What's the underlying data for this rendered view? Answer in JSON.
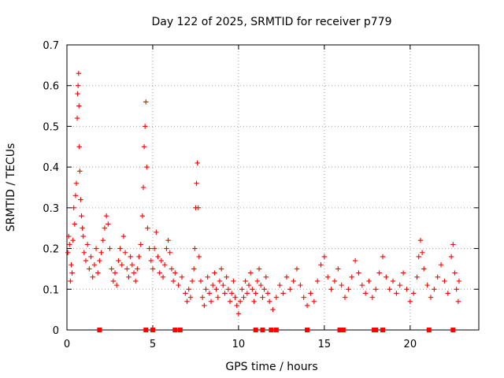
{
  "chart_data": {
    "type": "scatter",
    "title": "Day 122 of 2025, SRMTID for receiver p779",
    "xlabel": "GPS time / hours",
    "ylabel": "SRMTID / TECUs",
    "xlim": [
      0,
      24
    ],
    "ylim": [
      0,
      0.7
    ],
    "xticks": [
      0,
      5,
      10,
      15,
      20
    ],
    "xtick_labels": [
      "0",
      "5",
      "10",
      "15",
      "20"
    ],
    "yticks": [
      0,
      0.1,
      0.2,
      0.3,
      0.4,
      0.5,
      0.6,
      0.7
    ],
    "ytick_labels": [
      "0",
      "0.1",
      "0.2",
      "0.3",
      "0.4",
      "0.5",
      "0.6",
      "0.7"
    ],
    "grid": true,
    "marker": "+",
    "color": "#ff0000",
    "series": [
      {
        "name": "SRMTID",
        "points": [
          [
            0.05,
            0.19
          ],
          [
            0.1,
            0.23
          ],
          [
            0.15,
            0.21
          ],
          [
            0.2,
            0.12
          ],
          [
            0.25,
            0.16
          ],
          [
            0.3,
            0.14
          ],
          [
            0.35,
            0.22
          ],
          [
            0.4,
            0.3
          ],
          [
            0.45,
            0.26
          ],
          [
            0.5,
            0.33
          ],
          [
            0.55,
            0.36
          ],
          [
            0.6,
            0.52
          ],
          [
            0.62,
            0.58
          ],
          [
            0.65,
            0.6
          ],
          [
            0.68,
            0.63
          ],
          [
            0.7,
            0.55
          ],
          [
            0.72,
            0.45
          ],
          [
            0.75,
            0.39
          ],
          [
            0.8,
            0.32
          ],
          [
            0.85,
            0.28
          ],
          [
            0.9,
            0.25
          ],
          [
            0.95,
            0.23
          ],
          [
            1.0,
            0.19
          ],
          [
            1.1,
            0.17
          ],
          [
            1.2,
            0.21
          ],
          [
            1.3,
            0.15
          ],
          [
            1.4,
            0.18
          ],
          [
            1.5,
            0.13
          ],
          [
            1.6,
            0.16
          ],
          [
            1.7,
            0.2
          ],
          [
            1.8,
            0.14
          ],
          [
            1.9,
            0.17
          ],
          [
            2.0,
            0.19
          ],
          [
            2.1,
            0.22
          ],
          [
            2.2,
            0.25
          ],
          [
            2.3,
            0.28
          ],
          [
            2.4,
            0.26
          ],
          [
            2.5,
            0.2
          ],
          [
            2.6,
            0.15
          ],
          [
            2.7,
            0.12
          ],
          [
            2.8,
            0.14
          ],
          [
            2.9,
            0.11
          ],
          [
            3.0,
            0.17
          ],
          [
            3.1,
            0.2
          ],
          [
            3.2,
            0.16
          ],
          [
            3.3,
            0.23
          ],
          [
            3.4,
            0.19
          ],
          [
            3.5,
            0.15
          ],
          [
            3.6,
            0.13
          ],
          [
            3.7,
            0.18
          ],
          [
            3.8,
            0.16
          ],
          [
            3.9,
            0.14
          ],
          [
            4.0,
            0.12
          ],
          [
            4.1,
            0.15
          ],
          [
            4.2,
            0.18
          ],
          [
            4.3,
            0.21
          ],
          [
            4.4,
            0.28
          ],
          [
            4.45,
            0.35
          ],
          [
            4.5,
            0.45
          ],
          [
            4.55,
            0.5
          ],
          [
            4.6,
            0.56
          ],
          [
            4.65,
            0.4
          ],
          [
            4.7,
            0.25
          ],
          [
            4.8,
            0.2
          ],
          [
            4.9,
            0.17
          ],
          [
            5.0,
            0.15
          ],
          [
            5.1,
            0.2
          ],
          [
            5.2,
            0.24
          ],
          [
            5.3,
            0.18
          ],
          [
            5.4,
            0.14
          ],
          [
            5.5,
            0.17
          ],
          [
            5.6,
            0.13
          ],
          [
            5.7,
            0.16
          ],
          [
            5.8,
            0.2
          ],
          [
            5.9,
            0.22
          ],
          [
            6.0,
            0.19
          ],
          [
            6.1,
            0.15
          ],
          [
            6.2,
            0.12
          ],
          [
            6.3,
            0.14
          ],
          [
            6.5,
            0.11
          ],
          [
            6.7,
            0.13
          ],
          [
            6.9,
            0.09
          ],
          [
            7.0,
            0.07
          ],
          [
            7.1,
            0.1
          ],
          [
            7.2,
            0.08
          ],
          [
            7.3,
            0.12
          ],
          [
            7.4,
            0.15
          ],
          [
            7.45,
            0.2
          ],
          [
            7.5,
            0.3
          ],
          [
            7.55,
            0.36
          ],
          [
            7.6,
            0.41
          ],
          [
            7.65,
            0.3
          ],
          [
            7.7,
            0.18
          ],
          [
            7.8,
            0.12
          ],
          [
            7.9,
            0.08
          ],
          [
            8.0,
            0.06
          ],
          [
            8.1,
            0.1
          ],
          [
            8.2,
            0.13
          ],
          [
            8.3,
            0.09
          ],
          [
            8.4,
            0.07
          ],
          [
            8.5,
            0.11
          ],
          [
            8.6,
            0.14
          ],
          [
            8.7,
            0.1
          ],
          [
            8.8,
            0.08
          ],
          [
            8.9,
            0.12
          ],
          [
            9.0,
            0.15
          ],
          [
            9.1,
            0.11
          ],
          [
            9.2,
            0.09
          ],
          [
            9.3,
            0.13
          ],
          [
            9.4,
            0.1
          ],
          [
            9.5,
            0.07
          ],
          [
            9.6,
            0.09
          ],
          [
            9.7,
            0.12
          ],
          [
            9.8,
            0.08
          ],
          [
            9.9,
            0.06
          ],
          [
            10.0,
            0.04
          ],
          [
            10.1,
            0.07
          ],
          [
            10.2,
            0.1
          ],
          [
            10.3,
            0.08
          ],
          [
            10.4,
            0.12
          ],
          [
            10.5,
            0.09
          ],
          [
            10.6,
            0.11
          ],
          [
            10.7,
            0.14
          ],
          [
            10.8,
            0.1
          ],
          [
            10.9,
            0.07
          ],
          [
            11.0,
            0.09
          ],
          [
            11.1,
            0.12
          ],
          [
            11.2,
            0.15
          ],
          [
            11.3,
            0.11
          ],
          [
            11.4,
            0.08
          ],
          [
            11.5,
            0.1
          ],
          [
            11.6,
            0.13
          ],
          [
            11.7,
            0.09
          ],
          [
            11.8,
            0.07
          ],
          [
            12.0,
            0.05
          ],
          [
            12.2,
            0.08
          ],
          [
            12.4,
            0.11
          ],
          [
            12.6,
            0.09
          ],
          [
            12.8,
            0.13
          ],
          [
            13.0,
            0.1
          ],
          [
            13.2,
            0.12
          ],
          [
            13.4,
            0.15
          ],
          [
            13.6,
            0.11
          ],
          [
            13.8,
            0.08
          ],
          [
            14.0,
            0.06
          ],
          [
            14.2,
            0.09
          ],
          [
            14.4,
            0.07
          ],
          [
            14.6,
            0.12
          ],
          [
            14.8,
            0.16
          ],
          [
            15.0,
            0.18
          ],
          [
            15.2,
            0.13
          ],
          [
            15.4,
            0.1
          ],
          [
            15.6,
            0.12
          ],
          [
            15.8,
            0.15
          ],
          [
            16.0,
            0.11
          ],
          [
            16.2,
            0.08
          ],
          [
            16.4,
            0.1
          ],
          [
            16.6,
            0.13
          ],
          [
            16.8,
            0.17
          ],
          [
            17.0,
            0.14
          ],
          [
            17.2,
            0.11
          ],
          [
            17.4,
            0.09
          ],
          [
            17.6,
            0.12
          ],
          [
            17.8,
            0.08
          ],
          [
            18.0,
            0.1
          ],
          [
            18.2,
            0.14
          ],
          [
            18.4,
            0.18
          ],
          [
            18.6,
            0.13
          ],
          [
            18.8,
            0.1
          ],
          [
            19.0,
            0.12
          ],
          [
            19.2,
            0.09
          ],
          [
            19.4,
            0.11
          ],
          [
            19.6,
            0.14
          ],
          [
            19.8,
            0.1
          ],
          [
            20.0,
            0.07
          ],
          [
            20.2,
            0.09
          ],
          [
            20.4,
            0.13
          ],
          [
            20.5,
            0.18
          ],
          [
            20.6,
            0.22
          ],
          [
            20.7,
            0.19
          ],
          [
            20.8,
            0.15
          ],
          [
            21.0,
            0.11
          ],
          [
            21.2,
            0.08
          ],
          [
            21.4,
            0.1
          ],
          [
            21.6,
            0.13
          ],
          [
            21.8,
            0.16
          ],
          [
            22.0,
            0.12
          ],
          [
            22.2,
            0.09
          ],
          [
            22.4,
            0.18
          ],
          [
            22.5,
            0.21
          ],
          [
            22.6,
            0.14
          ],
          [
            22.7,
            0.1
          ],
          [
            22.8,
            0.07
          ],
          [
            22.85,
            0.12
          ]
        ]
      }
    ],
    "zero_markers_x": [
      1.9,
      4.6,
      5.0,
      6.3,
      6.6,
      11.0,
      11.4,
      11.9,
      12.2,
      14.0,
      15.9,
      16.1,
      17.9,
      18.0,
      18.4,
      21.1,
      22.5
    ]
  }
}
